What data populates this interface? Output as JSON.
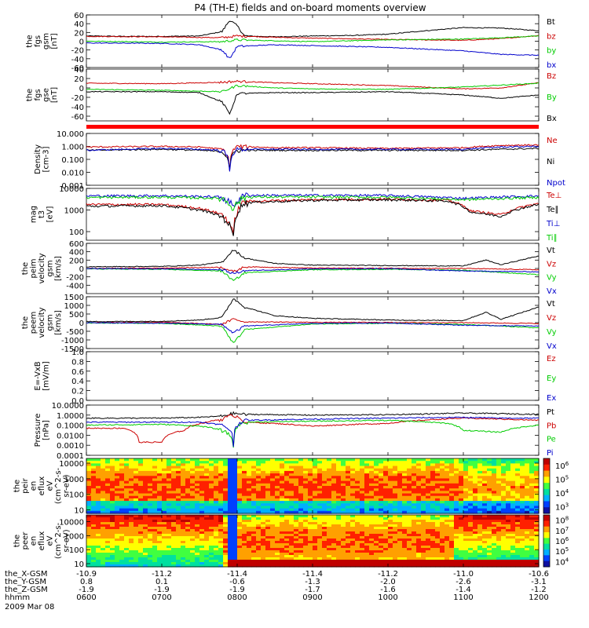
{
  "title": "P4 (TH-E) fields and on-board moments overview",
  "chart_data": [
    {
      "type": "line",
      "ylabel": [
        "the",
        "fgs",
        "gsm",
        "[nT]"
      ],
      "ylim": [
        -60,
        60
      ],
      "yticks": [
        "-60",
        "-40",
        "-20",
        "0",
        "20",
        "40",
        "60"
      ],
      "series": [
        {
          "name": "Bt",
          "color": "#000000",
          "t": [
            6.0,
            6.5,
            7.0,
            7.5,
            7.8,
            7.9,
            8.0,
            8.1,
            8.5,
            9.0,
            9.5,
            10.0,
            10.5,
            11.0,
            11.5,
            12.0
          ],
          "values": [
            12,
            11,
            11,
            12,
            22,
            48,
            35,
            12,
            10,
            12,
            13,
            16,
            24,
            31,
            30,
            24
          ]
        },
        {
          "name": "bz",
          "color": "#cc0000",
          "t": [
            6.0,
            7.0,
            7.8,
            8.0,
            8.5,
            9.0,
            10.0,
            11.0,
            11.5,
            12.0
          ],
          "values": [
            11,
            10,
            8,
            12,
            9,
            7,
            4,
            2,
            6,
            13
          ]
        },
        {
          "name": "by",
          "color": "#00cc00",
          "t": [
            6.0,
            7.0,
            7.8,
            8.0,
            8.5,
            9.0,
            10.0,
            11.0,
            11.5,
            12.0
          ],
          "values": [
            0,
            -2,
            -1,
            3,
            1,
            -1,
            3,
            5,
            8,
            12
          ]
        },
        {
          "name": "bx",
          "color": "#0000cc",
          "t": [
            6.0,
            7.0,
            7.5,
            7.8,
            7.9,
            8.0,
            8.5,
            9.0,
            10.0,
            11.0,
            11.5,
            12.0
          ],
          "values": [
            -4,
            -5,
            -8,
            -20,
            -40,
            -12,
            -8,
            -10,
            -14,
            -22,
            -30,
            -32
          ]
        }
      ]
    },
    {
      "type": "line",
      "ylabel": [
        "the",
        "fgs",
        "gse",
        "[nT]"
      ],
      "ylim": [
        -70,
        40
      ],
      "yticks": [
        "-60",
        "-40",
        "-20",
        "0",
        "20",
        "40"
      ],
      "series": [
        {
          "name": "Bz",
          "color": "#cc0000",
          "t": [
            6.0,
            7.0,
            7.8,
            8.0,
            8.5,
            9.0,
            10.0,
            11.0,
            11.5,
            12.0
          ],
          "values": [
            10,
            9,
            12,
            14,
            11,
            9,
            5,
            -2,
            0,
            11
          ]
        },
        {
          "name": "By",
          "color": "#00cc00",
          "t": [
            6.0,
            7.0,
            7.8,
            8.0,
            8.5,
            9.0,
            10.0,
            11.0,
            11.5,
            12.0
          ],
          "values": [
            -3,
            -5,
            -8,
            5,
            0,
            -2,
            -3,
            2,
            6,
            10
          ]
        },
        {
          "name": "Bx",
          "color": "#000000",
          "t": [
            6.0,
            7.0,
            7.5,
            7.8,
            7.9,
            8.0,
            8.5,
            9.0,
            10.0,
            11.0,
            11.5,
            12.0
          ],
          "values": [
            -8,
            -8,
            -10,
            -30,
            -55,
            -12,
            -10,
            -10,
            -8,
            -15,
            -22,
            -15
          ]
        }
      ]
    },
    {
      "type": "line",
      "scale": "log",
      "ylabel": [
        "Density",
        "[cm-3]"
      ],
      "ylim": [
        0.001,
        10
      ],
      "yticks": [
        "0.001",
        "0.010",
        "0.100",
        "1.000",
        "10.000"
      ],
      "series": [
        {
          "name": "Ne",
          "color": "#cc0000",
          "t": [
            6.0,
            7.0,
            7.5,
            7.8,
            7.9,
            8.0,
            8.5,
            9.0,
            10.0,
            11.0,
            11.5,
            12.0
          ],
          "values": [
            0.9,
            1.0,
            0.9,
            0.6,
            0.02,
            1.0,
            0.8,
            0.8,
            0.7,
            0.8,
            1.2,
            1.3
          ]
        },
        {
          "name": "Ni",
          "color": "#000000",
          "t": [
            6.0,
            7.0,
            7.5,
            7.8,
            7.9,
            8.0,
            8.5,
            9.0,
            10.0,
            11.0,
            11.5,
            12.0
          ],
          "values": [
            0.5,
            0.6,
            0.5,
            0.4,
            0.02,
            0.5,
            0.5,
            0.5,
            0.5,
            0.5,
            0.6,
            0.7
          ]
        },
        {
          "name": "Npot",
          "color": "#0000cc",
          "t": [
            6.0,
            7.0,
            7.5,
            7.8,
            7.9,
            8.0,
            8.5,
            9.0,
            10.0,
            11.0,
            11.5,
            12.0
          ],
          "values": [
            0.5,
            0.7,
            0.6,
            0.5,
            0.01,
            0.6,
            0.6,
            0.6,
            0.6,
            0.6,
            0.9,
            1.0
          ]
        }
      ]
    },
    {
      "type": "line",
      "scale": "log",
      "ylabel": [
        "mag",
        "t3",
        "[eV]"
      ],
      "ylim": [
        40,
        10000
      ],
      "yticks": [
        "100",
        "1000",
        "10000"
      ],
      "series": [
        {
          "name": "Te⊥",
          "color": "#cc0000",
          "t": [
            6.0,
            7.0,
            7.5,
            7.8,
            7.95,
            8.1,
            9.0,
            10.0,
            10.8,
            11.1,
            11.5,
            12.0
          ],
          "values": [
            1800,
            1800,
            1200,
            600,
            60,
            2500,
            3000,
            3200,
            2800,
            900,
            600,
            2000
          ]
        },
        {
          "name": "Te∥",
          "color": "#000000",
          "t": [
            6.0,
            7.0,
            7.5,
            7.8,
            7.95,
            8.1,
            9.0,
            10.0,
            10.8,
            11.1,
            11.5,
            12.0
          ],
          "values": [
            1500,
            1600,
            1000,
            500,
            50,
            2200,
            2800,
            3000,
            2600,
            800,
            500,
            1800
          ]
        },
        {
          "name": "Ti⊥",
          "color": "#0000cc",
          "t": [
            6.0,
            7.0,
            7.8,
            7.95,
            8.1,
            9.0,
            10.0,
            11.0,
            12.0
          ],
          "values": [
            4500,
            4600,
            4000,
            1500,
            4800,
            4800,
            4700,
            3500,
            4500
          ]
        },
        {
          "name": "Ti∥",
          "color": "#00cc00",
          "t": [
            6.0,
            7.0,
            7.8,
            7.95,
            8.1,
            9.0,
            10.0,
            11.0,
            12.0
          ],
          "values": [
            3800,
            3900,
            3500,
            1200,
            4000,
            4000,
            3900,
            3000,
            3800
          ]
        }
      ]
    },
    {
      "type": "line",
      "ylabel": [
        "the",
        "peim",
        "velocity",
        "gsm",
        "[km/s]"
      ],
      "ylim": [
        -600,
        600
      ],
      "yticks": [
        "-400",
        "-200",
        "0",
        "200",
        "400",
        "600"
      ],
      "series": [
        {
          "name": "Vt",
          "color": "#000000",
          "t": [
            6.0,
            7.0,
            7.5,
            7.8,
            7.95,
            8.1,
            8.5,
            9.0,
            10.0,
            11.0,
            11.3,
            11.5,
            12.0
          ],
          "values": [
            40,
            50,
            80,
            150,
            450,
            250,
            120,
            80,
            70,
            60,
            200,
            90,
            300
          ]
        },
        {
          "name": "Vz",
          "color": "#cc0000",
          "t": [
            6.0,
            7.0,
            7.8,
            7.95,
            8.1,
            9.0,
            10.0,
            11.0,
            12.0
          ],
          "values": [
            0,
            10,
            30,
            -80,
            40,
            10,
            5,
            0,
            -30
          ]
        },
        {
          "name": "Vy",
          "color": "#00cc00",
          "t": [
            6.0,
            7.0,
            7.8,
            7.95,
            8.1,
            9.0,
            10.0,
            11.0,
            12.0
          ],
          "values": [
            -10,
            -20,
            -60,
            -300,
            -100,
            -30,
            -20,
            -40,
            -150
          ]
        },
        {
          "name": "Vx",
          "color": "#0000cc",
          "t": [
            6.0,
            7.0,
            7.8,
            7.95,
            8.1,
            9.0,
            10.0,
            11.0,
            12.0
          ],
          "values": [
            -5,
            -10,
            -30,
            -120,
            -50,
            -10,
            -5,
            -60,
            -80
          ]
        }
      ]
    },
    {
      "type": "line",
      "ylabel": [
        "the",
        "peem",
        "velocity",
        "gsm",
        "[km/s]"
      ],
      "ylim": [
        -1500,
        1500
      ],
      "yticks": [
        "-1500",
        "-1000",
        "-500",
        "0",
        "500",
        "1000",
        "1500"
      ],
      "series": [
        {
          "name": "Vt",
          "color": "#000000",
          "t": [
            6.0,
            7.0,
            7.5,
            7.8,
            7.95,
            8.1,
            8.5,
            9.0,
            10.0,
            11.0,
            11.3,
            11.5,
            12.0
          ],
          "values": [
            60,
            80,
            150,
            300,
            1400,
            900,
            400,
            250,
            150,
            120,
            600,
            200,
            900
          ]
        },
        {
          "name": "Vz",
          "color": "#cc0000",
          "t": [
            6.0,
            7.0,
            7.8,
            7.95,
            8.1,
            9.0,
            10.0,
            11.0,
            12.0
          ],
          "values": [
            0,
            20,
            -100,
            200,
            50,
            20,
            10,
            0,
            -50
          ]
        },
        {
          "name": "Vy",
          "color": "#00cc00",
          "t": [
            6.0,
            7.0,
            7.8,
            7.95,
            8.1,
            9.0,
            10.0,
            11.0,
            12.0
          ],
          "values": [
            -20,
            -40,
            -200,
            -1200,
            -400,
            -80,
            -40,
            -100,
            -300
          ]
        },
        {
          "name": "Vx",
          "color": "#0000cc",
          "t": [
            6.0,
            7.0,
            7.8,
            7.95,
            8.1,
            9.0,
            10.0,
            11.0,
            12.0
          ],
          "values": [
            -10,
            -30,
            -100,
            -600,
            -200,
            -40,
            -20,
            -150,
            -200
          ]
        }
      ]
    },
    {
      "type": "line",
      "ylabel": [
        "E=-VxB",
        "[mV/m]"
      ],
      "ylim": [
        0,
        1
      ],
      "yticks": [
        "0.0",
        "0.2",
        "0.4",
        "0.6",
        "0.8",
        "1.0"
      ],
      "series": [
        {
          "name": "Ez",
          "color": "#cc0000",
          "t": [],
          "values": []
        },
        {
          "name": "Ey",
          "color": "#00cc00",
          "t": [],
          "values": []
        },
        {
          "name": "Ex",
          "color": "#0000cc",
          "t": [],
          "values": []
        }
      ]
    },
    {
      "type": "line",
      "scale": "log",
      "ylabel": [
        "Pressure",
        "[nPa]"
      ],
      "ylim": [
        0.0001,
        10
      ],
      "yticks": [
        "0.0001",
        "0.0010",
        "0.0100",
        "0.1000",
        "1.0000",
        "10.0000"
      ],
      "series": [
        {
          "name": "Pt",
          "color": "#000000",
          "t": [
            6.0,
            7.0,
            7.5,
            7.8,
            7.95,
            8.1,
            9.0,
            10.0,
            10.5,
            11.0,
            11.5,
            12.0
          ],
          "values": [
            0.5,
            0.5,
            0.6,
            0.8,
            1.5,
            1.2,
            1.0,
            1.1,
            1.3,
            1.6,
            1.4,
            1.2
          ]
        },
        {
          "name": "Pb",
          "color": "#cc0000",
          "t": [
            6.0,
            6.5,
            6.7,
            7.0,
            7.3,
            7.6,
            7.8,
            7.95,
            8.1,
            9.0,
            10.0,
            11.0,
            11.5,
            12.0
          ],
          "values": [
            0.05,
            0.05,
            0.002,
            0.002,
            0.03,
            0.2,
            0.4,
            1.0,
            0.2,
            0.08,
            0.15,
            0.5,
            0.4,
            0.3
          ]
        },
        {
          "name": "Pe",
          "color": "#00cc00",
          "t": [
            6.0,
            7.0,
            7.5,
            7.8,
            7.95,
            8.1,
            9.0,
            10.0,
            10.8,
            11.0,
            11.5,
            12.0
          ],
          "values": [
            0.1,
            0.12,
            0.08,
            0.03,
            0.0005,
            0.2,
            0.25,
            0.3,
            0.15,
            0.03,
            0.02,
            0.1
          ]
        },
        {
          "name": "Pi",
          "color": "#0000cc",
          "t": [
            6.0,
            7.0,
            7.5,
            7.8,
            7.95,
            8.1,
            9.0,
            10.0,
            11.0,
            11.5,
            12.0
          ],
          "values": [
            0.2,
            0.2,
            0.2,
            0.1,
            0.001,
            0.3,
            0.4,
            0.5,
            0.6,
            0.5,
            0.5
          ]
        }
      ]
    },
    {
      "type": "heatmap",
      "ylabel": [
        "the",
        "peir",
        "en",
        "eflux",
        "eV",
        "(cm^2-s-",
        "sr-eV)"
      ],
      "yscale": "log",
      "ylim": [
        6,
        20000
      ],
      "yticks": [
        "10",
        "100",
        "1000",
        "10000"
      ],
      "colorbar_labels": [
        "10^3",
        "10^4",
        "10^5",
        "10^6"
      ]
    },
    {
      "type": "heatmap",
      "ylabel": [
        "the",
        "peer",
        "en",
        "eflux",
        "eV",
        "(cm^2-s-",
        "sr-eV)"
      ],
      "yscale": "log",
      "ylim": [
        6,
        30000
      ],
      "yticks": [
        "10",
        "100",
        "1000",
        "10000"
      ],
      "colorbar_labels": [
        "10^4",
        "10^5",
        "10^6",
        "10^7",
        "10^8"
      ]
    }
  ],
  "xaxis": {
    "row_labels": [
      "the_X-GSM",
      "the_Y-GSM",
      "the_Z-GSM",
      "hhmm"
    ],
    "date": "2009 Mar 08",
    "ticks": [
      {
        "X": "-10.9",
        "Y": "0.8",
        "Z": "-1.9",
        "hhmm": "0600"
      },
      {
        "X": "-11.2",
        "Y": "0.1",
        "Z": "-1.9",
        "hhmm": "0700"
      },
      {
        "X": "-11.4",
        "Y": "-0.6",
        "Z": "-1.9",
        "hhmm": "0800"
      },
      {
        "X": "-11.4",
        "Y": "-1.3",
        "Z": "-1.7",
        "hhmm": "0900"
      },
      {
        "X": "-11.2",
        "Y": "-2.0",
        "Z": "-1.6",
        "hhmm": "1000"
      },
      {
        "X": "-11.0",
        "Y": "-2.6",
        "Z": "-1.4",
        "hhmm": "1100"
      },
      {
        "X": "-10.6",
        "Y": "-3.1",
        "Z": "-1.2",
        "hhmm": "1200"
      }
    ]
  }
}
